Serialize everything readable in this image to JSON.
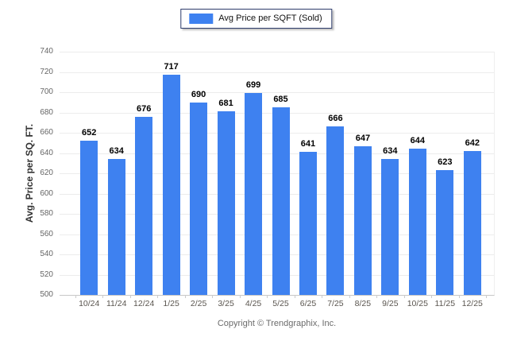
{
  "legend": {
    "label": "Avg Price per SQFT (Sold)"
  },
  "footer": {
    "text": "Copyright © Trendgraphix, Inc."
  },
  "chart_data": {
    "type": "bar",
    "title": "",
    "categories": [
      "10/24",
      "11/24",
      "12/24",
      "1/25",
      "2/25",
      "3/25",
      "4/25",
      "5/25",
      "6/25",
      "7/25",
      "8/25",
      "9/25",
      "10/25",
      "11/25",
      "12/25"
    ],
    "values": [
      652,
      634,
      676,
      717,
      690,
      681,
      699,
      685,
      641,
      666,
      647,
      634,
      644,
      623,
      642
    ],
    "series_name": "Avg Price per SQFT (Sold)",
    "xlabel": "",
    "ylabel": "Avg. Price per SQ. FT.",
    "ylim": [
      500,
      740
    ],
    "ytick_step": 20,
    "bar_color": "#3e81f0",
    "grid": true,
    "legend_position": "top",
    "data_labels": true
  }
}
